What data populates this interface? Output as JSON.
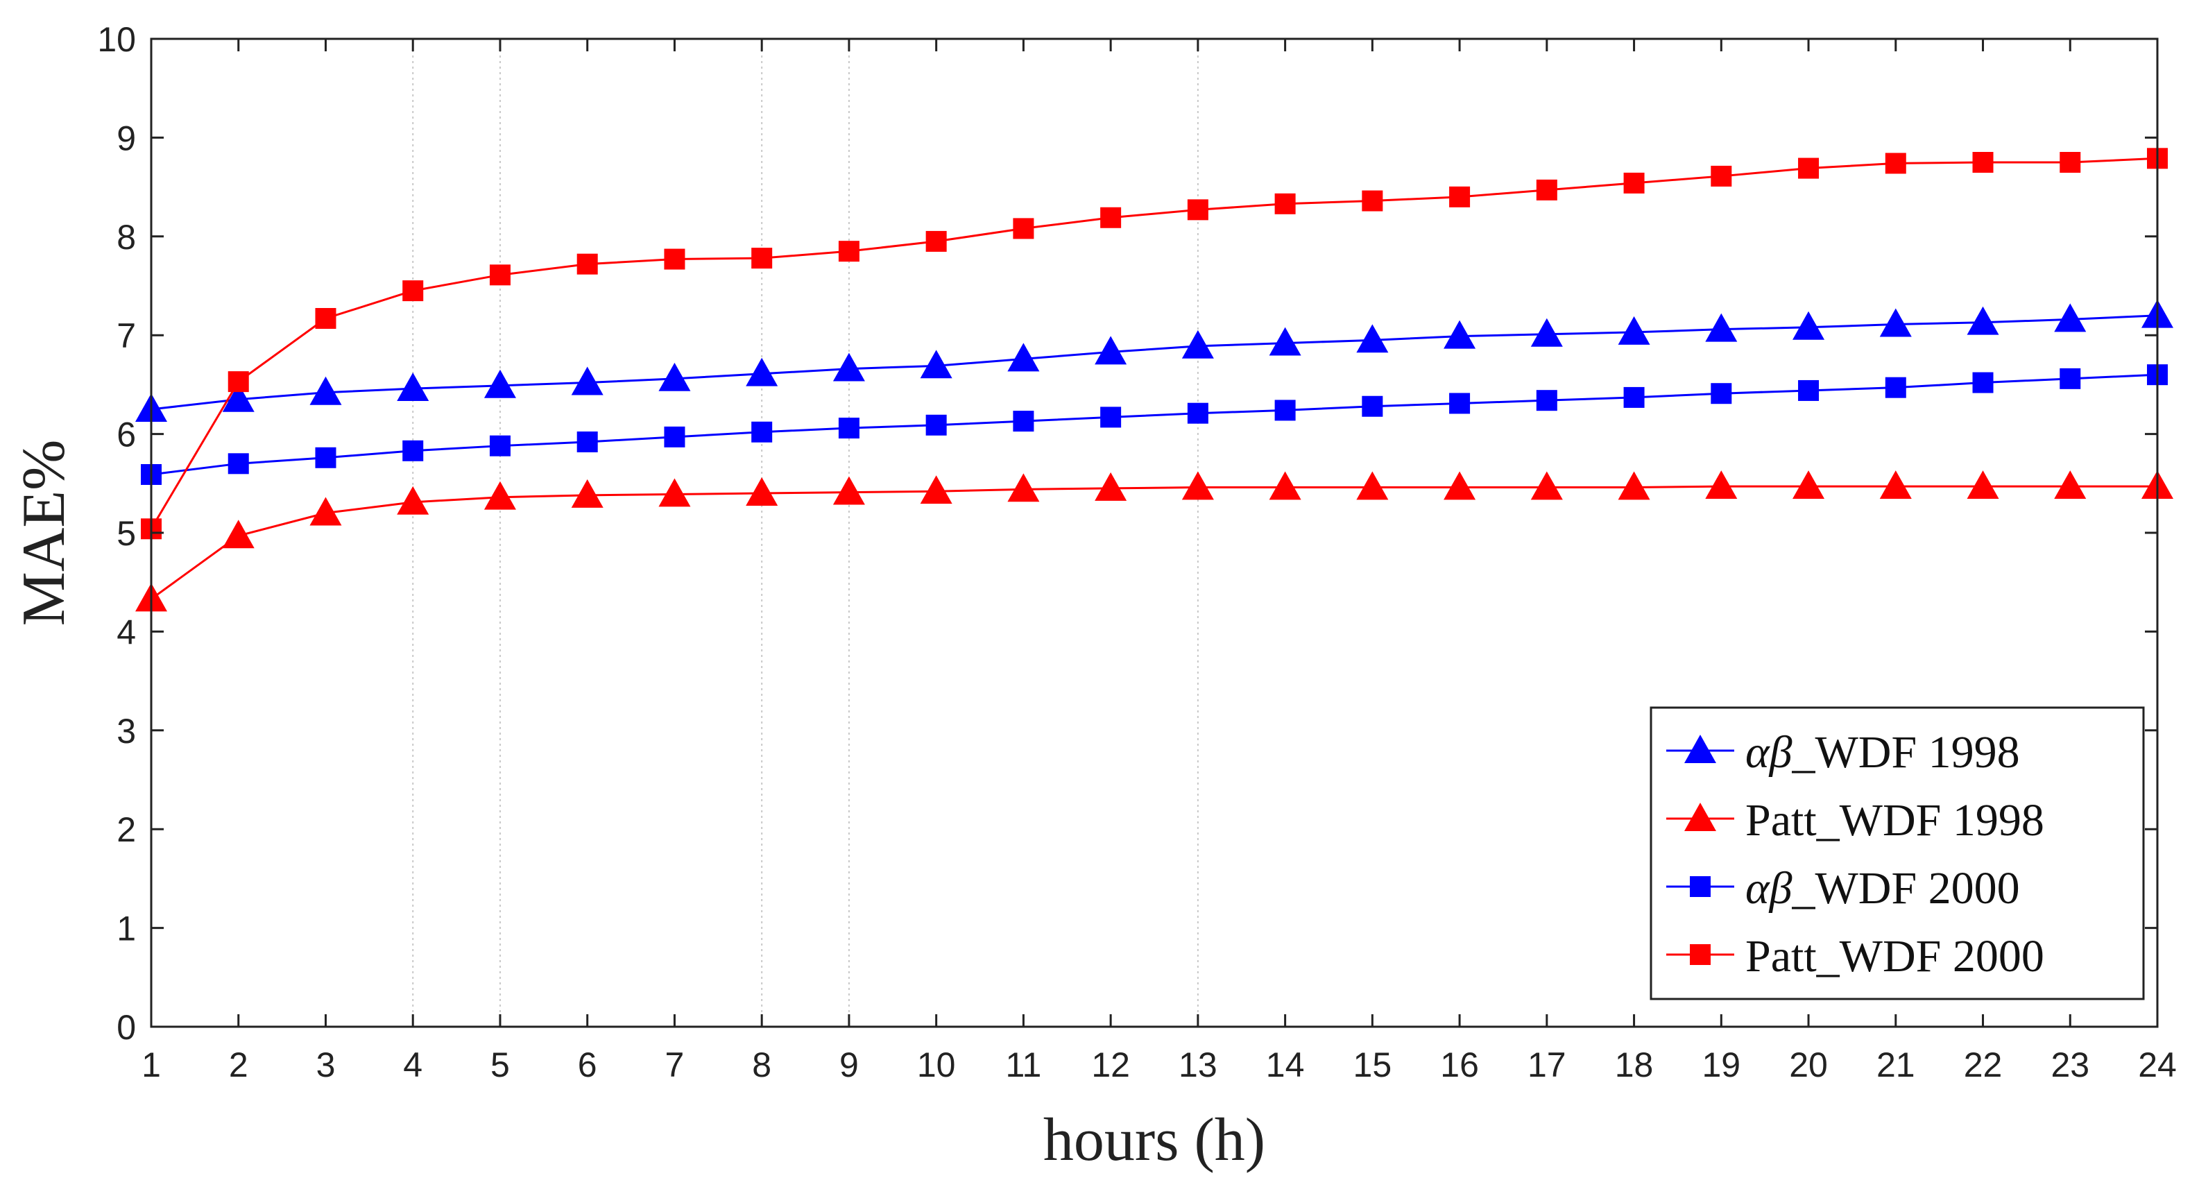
{
  "chart_data": {
    "type": "line",
    "title": "",
    "xlabel": "hours (h)",
    "ylabel": "MAE%",
    "xlim": [
      1,
      24
    ],
    "ylim": [
      0,
      10
    ],
    "x": [
      1,
      2,
      3,
      4,
      5,
      6,
      7,
      8,
      9,
      10,
      11,
      12,
      13,
      14,
      15,
      16,
      17,
      18,
      19,
      20,
      21,
      22,
      23,
      24
    ],
    "xticks": [
      "1",
      "2",
      "3",
      "4",
      "5",
      "6",
      "7",
      "8",
      "9",
      "10",
      "11",
      "12",
      "13",
      "14",
      "15",
      "16",
      "17",
      "18",
      "19",
      "20",
      "21",
      "22",
      "23",
      "24"
    ],
    "yticks": [
      "0",
      "1",
      "2",
      "3",
      "4",
      "5",
      "6",
      "7",
      "8",
      "9",
      "10"
    ],
    "grid_x_lines": [
      4,
      5,
      8,
      9,
      13
    ],
    "legend_position": "bottom-right",
    "series": [
      {
        "name": "αβ_WDF 1998",
        "name_greek": "αβ",
        "name_rest": "_WDF 1998",
        "color": "#0000ff",
        "marker": "triangle",
        "values": [
          6.25,
          6.35,
          6.42,
          6.46,
          6.49,
          6.52,
          6.56,
          6.61,
          6.66,
          6.69,
          6.76,
          6.83,
          6.89,
          6.92,
          6.95,
          6.99,
          7.01,
          7.03,
          7.06,
          7.08,
          7.11,
          7.13,
          7.16,
          7.2
        ]
      },
      {
        "name": "Patt_WDF 1998",
        "color": "#ff0000",
        "marker": "triangle",
        "values": [
          4.33,
          4.97,
          5.2,
          5.31,
          5.36,
          5.38,
          5.39,
          5.4,
          5.41,
          5.42,
          5.44,
          5.45,
          5.46,
          5.46,
          5.46,
          5.46,
          5.46,
          5.46,
          5.47,
          5.47,
          5.47,
          5.47,
          5.47,
          5.47
        ]
      },
      {
        "name": "αβ_WDF 2000",
        "name_greek": "αβ",
        "name_rest": "_WDF 2000",
        "color": "#0000ff",
        "marker": "square",
        "values": [
          5.59,
          5.7,
          5.76,
          5.83,
          5.88,
          5.92,
          5.97,
          6.02,
          6.06,
          6.09,
          6.13,
          6.17,
          6.21,
          6.24,
          6.28,
          6.31,
          6.34,
          6.37,
          6.41,
          6.44,
          6.47,
          6.52,
          6.56,
          6.6
        ]
      },
      {
        "name": "Patt_WDF 2000",
        "color": "#ff0000",
        "marker": "square",
        "values": [
          5.04,
          6.53,
          7.17,
          7.45,
          7.61,
          7.72,
          7.77,
          7.78,
          7.85,
          7.95,
          8.08,
          8.19,
          8.27,
          8.33,
          8.36,
          8.4,
          8.47,
          8.54,
          8.61,
          8.69,
          8.74,
          8.75,
          8.75,
          8.79
        ]
      }
    ]
  }
}
